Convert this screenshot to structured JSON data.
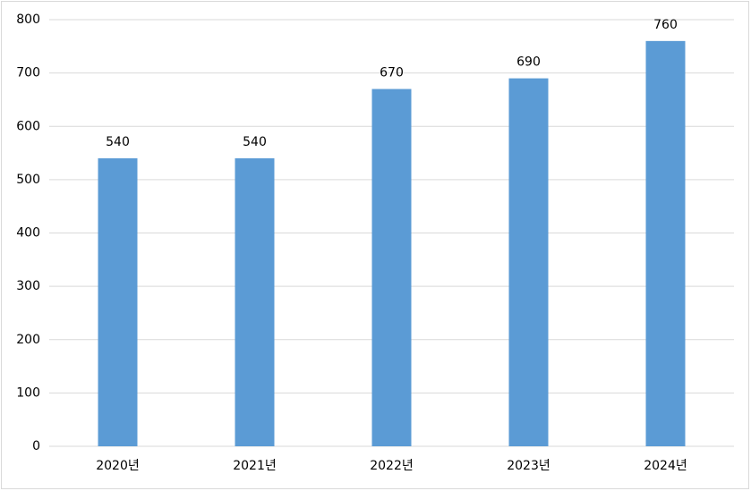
{
  "chart_data": {
    "type": "bar",
    "categories": [
      "2020년",
      "2021년",
      "2022년",
      "2023년",
      "2024년"
    ],
    "values": [
      540,
      540,
      670,
      690,
      760
    ],
    "color": "#5b9bd5",
    "ylim": [
      0,
      800
    ],
    "yticks": [
      0,
      100,
      200,
      300,
      400,
      500,
      600,
      700,
      800
    ],
    "grid": true
  }
}
